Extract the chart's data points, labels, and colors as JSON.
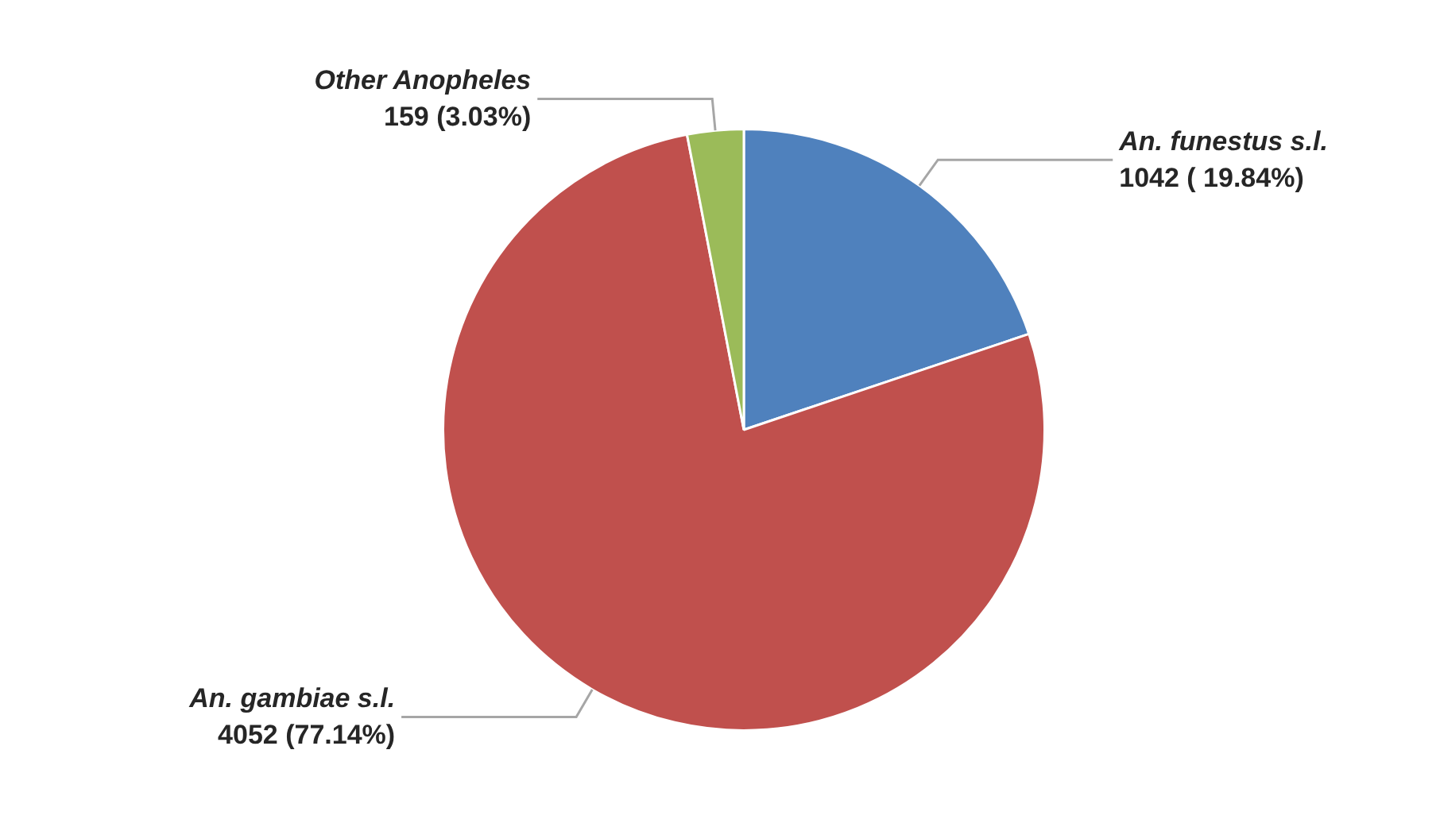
{
  "chart_data": {
    "type": "pie",
    "categories": [
      "An. funestus s.l.",
      "An. gambiae s.l.",
      "Other Anopheles"
    ],
    "values": [
      1042,
      4052,
      159
    ],
    "colors": [
      "#4f81bd",
      "#c0504d",
      "#9bbb59"
    ],
    "value_labels": [
      "1042 ( 19.84%)",
      "4052 (77.14%)",
      "159 (3.03%)"
    ],
    "legend": false
  }
}
